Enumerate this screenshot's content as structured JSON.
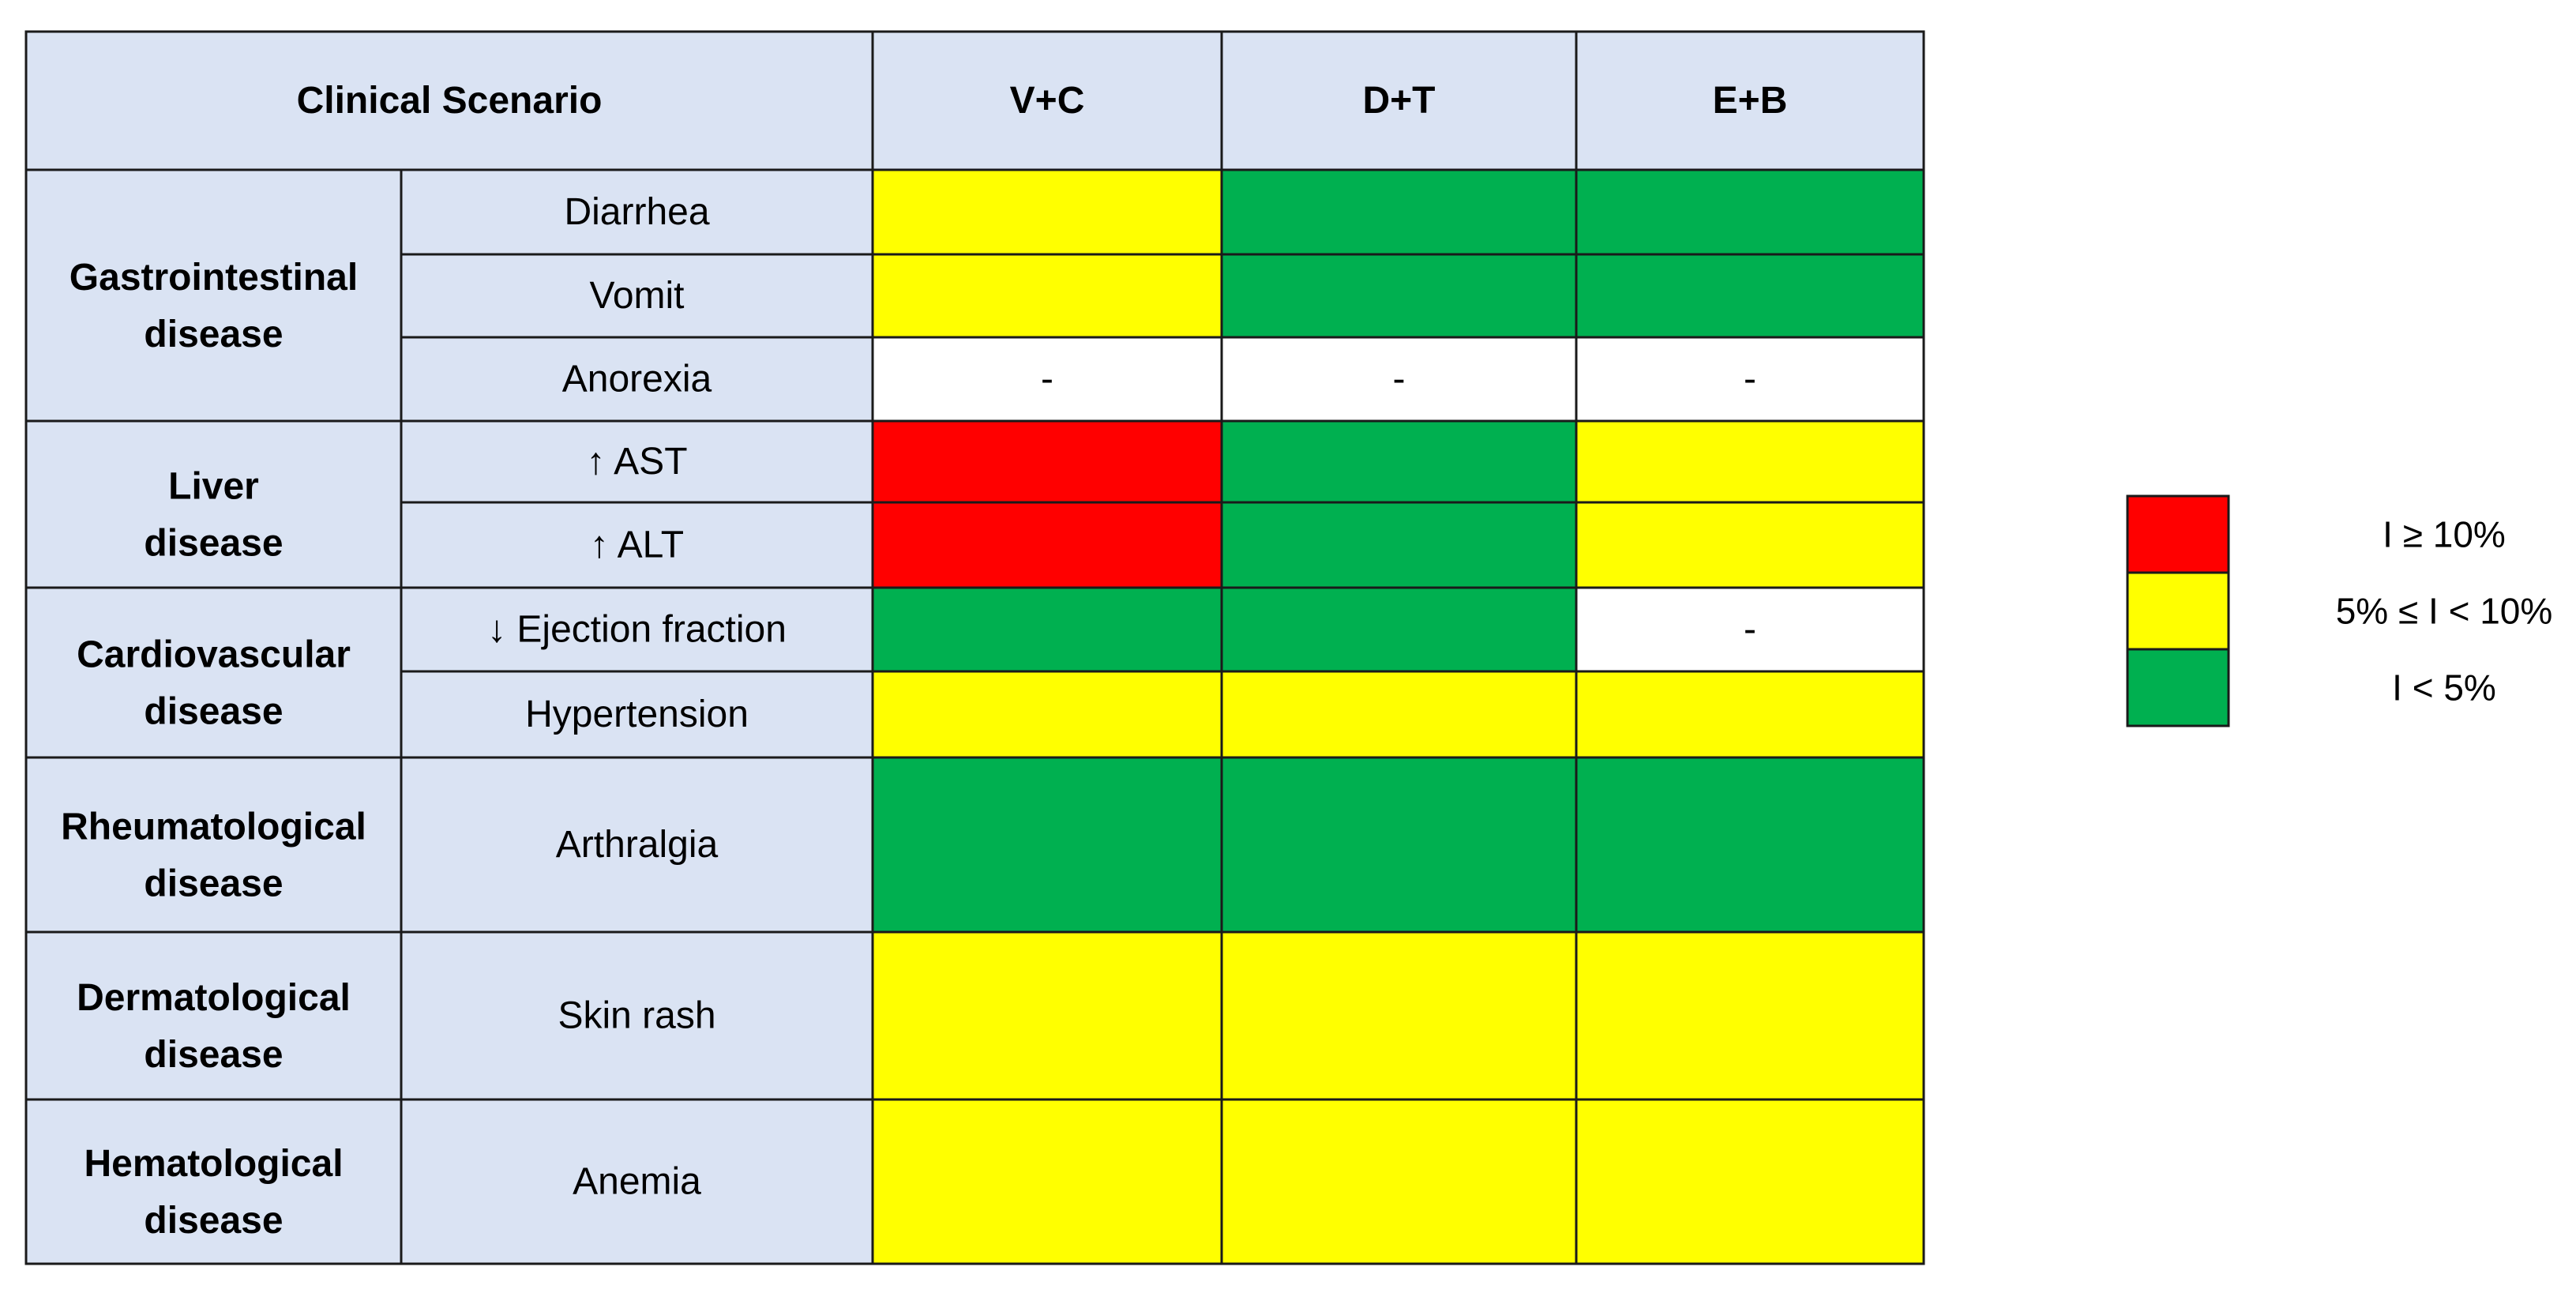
{
  "chart_data": {
    "type": "table",
    "header": {
      "scenario": "Clinical Scenario",
      "columns": [
        "V+C",
        "D+T",
        "E+B"
      ]
    },
    "groups": [
      {
        "category": "Gastrointestinal disease",
        "rows": [
          {
            "label": "Diarrhea",
            "levels": [
              "medium",
              "low",
              "low"
            ]
          },
          {
            "label": "Vomit",
            "levels": [
              "medium",
              "low",
              "low"
            ]
          },
          {
            "label": "Anorexia",
            "levels": [
              "none",
              "none",
              "none"
            ]
          }
        ]
      },
      {
        "category": "Liver disease",
        "rows": [
          {
            "label": "↑ AST",
            "levels": [
              "high",
              "low",
              "medium"
            ]
          },
          {
            "label": "↑ ALT",
            "levels": [
              "high",
              "low",
              "medium"
            ]
          }
        ]
      },
      {
        "category": "Cardiovascular disease",
        "rows": [
          {
            "label": "↓ Ejection fraction",
            "levels": [
              "low",
              "low",
              "none"
            ]
          },
          {
            "label": "Hypertension",
            "levels": [
              "medium",
              "medium",
              "medium"
            ]
          }
        ]
      },
      {
        "category": "Rheumatological disease",
        "rows": [
          {
            "label": "Arthralgia",
            "levels": [
              "low",
              "low",
              "low"
            ]
          }
        ]
      },
      {
        "category": "Dermatological disease",
        "rows": [
          {
            "label": "Skin rash",
            "levels": [
              "medium",
              "medium",
              "medium"
            ]
          }
        ]
      },
      {
        "category": "Hematological disease",
        "rows": [
          {
            "label": "Anemia",
            "levels": [
              "medium",
              "medium",
              "medium"
            ]
          }
        ]
      }
    ],
    "none_symbol": "-",
    "legend": [
      {
        "level": "high",
        "label": "I ≥ 10%",
        "color": "#ff0000"
      },
      {
        "level": "medium",
        "label": "5% ≤ I < 10%",
        "color": "#ffff00"
      },
      {
        "level": "low",
        "label": "I < 5%",
        "color": "#00b050"
      }
    ],
    "colors": {
      "header_fill": "#dae3f3",
      "label_fill": "#dae3f3",
      "none_fill": "#ffffff",
      "border": "#1a1a1a",
      "text": "#000000"
    }
  }
}
